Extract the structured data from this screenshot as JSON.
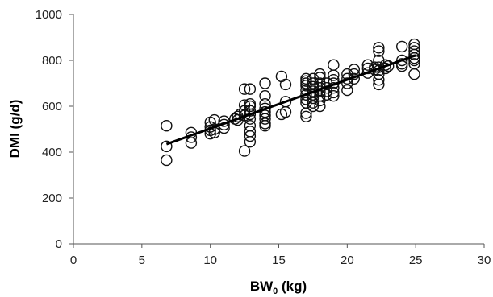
{
  "chart_data": {
    "type": "scatter",
    "xlabel_main": "BW",
    "xlabel_sub": "0",
    "xlabel_unit": " (kg)",
    "ylabel": "DMI (g/d)",
    "xlim": [
      0,
      30
    ],
    "ylim": [
      0,
      1000
    ],
    "xticks": [
      0,
      5,
      10,
      15,
      20,
      25,
      30
    ],
    "yticks": [
      0,
      200,
      400,
      600,
      800,
      1000
    ],
    "grid": false,
    "legend": "none",
    "trendline": {
      "x": [
        6.8,
        25
      ],
      "y": [
        435,
        822
      ]
    },
    "points": [
      [
        6.8,
        515
      ],
      [
        6.8,
        425
      ],
      [
        6.8,
        365
      ],
      [
        8.6,
        485
      ],
      [
        8.6,
        465
      ],
      [
        8.6,
        440
      ],
      [
        10,
        530
      ],
      [
        10,
        510
      ],
      [
        10,
        495
      ],
      [
        10,
        480
      ],
      [
        10.3,
        540
      ],
      [
        10.3,
        500
      ],
      [
        10.3,
        485
      ],
      [
        11,
        535
      ],
      [
        11,
        520
      ],
      [
        11,
        505
      ],
      [
        11.8,
        545
      ],
      [
        12,
        555
      ],
      [
        12,
        540
      ],
      [
        12.2,
        565
      ],
      [
        12.5,
        675
      ],
      [
        12.5,
        605
      ],
      [
        12.5,
        580
      ],
      [
        12.5,
        560
      ],
      [
        12.5,
        405
      ],
      [
        12.9,
        675
      ],
      [
        12.9,
        610
      ],
      [
        12.9,
        600
      ],
      [
        12.9,
        580
      ],
      [
        12.9,
        565
      ],
      [
        12.9,
        545
      ],
      [
        12.9,
        515
      ],
      [
        12.9,
        490
      ],
      [
        12.9,
        470
      ],
      [
        12.9,
        445
      ],
      [
        14,
        700
      ],
      [
        14,
        645
      ],
      [
        14,
        610
      ],
      [
        14,
        590
      ],
      [
        14,
        575
      ],
      [
        14,
        560
      ],
      [
        14,
        545
      ],
      [
        14,
        525
      ],
      [
        14,
        515
      ],
      [
        15.2,
        730
      ],
      [
        15.2,
        565
      ],
      [
        15.5,
        695
      ],
      [
        15.5,
        620
      ],
      [
        15.5,
        575
      ],
      [
        17,
        720
      ],
      [
        17,
        710
      ],
      [
        17,
        700
      ],
      [
        17,
        690
      ],
      [
        17,
        670
      ],
      [
        17,
        650
      ],
      [
        17,
        630
      ],
      [
        17,
        615
      ],
      [
        17,
        570
      ],
      [
        17,
        555
      ],
      [
        17.5,
        720
      ],
      [
        17.5,
        700
      ],
      [
        17.5,
        685
      ],
      [
        17.5,
        665
      ],
      [
        17.5,
        650
      ],
      [
        17.5,
        635
      ],
      [
        17.5,
        615
      ],
      [
        17.5,
        600
      ],
      [
        18,
        740
      ],
      [
        18,
        725
      ],
      [
        18,
        700
      ],
      [
        18,
        680
      ],
      [
        18,
        665
      ],
      [
        18,
        645
      ],
      [
        18,
        625
      ],
      [
        18,
        600
      ],
      [
        18.5,
        700
      ],
      [
        18.5,
        680
      ],
      [
        18.5,
        665
      ],
      [
        18.5,
        650
      ],
      [
        19,
        780
      ],
      [
        19,
        735
      ],
      [
        19,
        715
      ],
      [
        19,
        700
      ],
      [
        19,
        680
      ],
      [
        19,
        660
      ],
      [
        19,
        645
      ],
      [
        20,
        740
      ],
      [
        20,
        720
      ],
      [
        20,
        700
      ],
      [
        20,
        670
      ],
      [
        20.5,
        760
      ],
      [
        20.5,
        740
      ],
      [
        20.5,
        720
      ],
      [
        21.5,
        780
      ],
      [
        21.5,
        765
      ],
      [
        21.5,
        745
      ],
      [
        22,
        770
      ],
      [
        22,
        760
      ],
      [
        22.3,
        855
      ],
      [
        22.3,
        840
      ],
      [
        22.3,
        800
      ],
      [
        22.3,
        770
      ],
      [
        22.3,
        755
      ],
      [
        22.3,
        740
      ],
      [
        22.3,
        715
      ],
      [
        22.3,
        695
      ],
      [
        22.8,
        780
      ],
      [
        22.8,
        765
      ],
      [
        23,
        775
      ],
      [
        24,
        860
      ],
      [
        24,
        800
      ],
      [
        24,
        785
      ],
      [
        24,
        775
      ],
      [
        24.9,
        870
      ],
      [
        24.9,
        855
      ],
      [
        24.9,
        840
      ],
      [
        24.9,
        825
      ],
      [
        24.9,
        810
      ],
      [
        24.9,
        800
      ],
      [
        24.9,
        785
      ],
      [
        24.9,
        740
      ]
    ]
  }
}
